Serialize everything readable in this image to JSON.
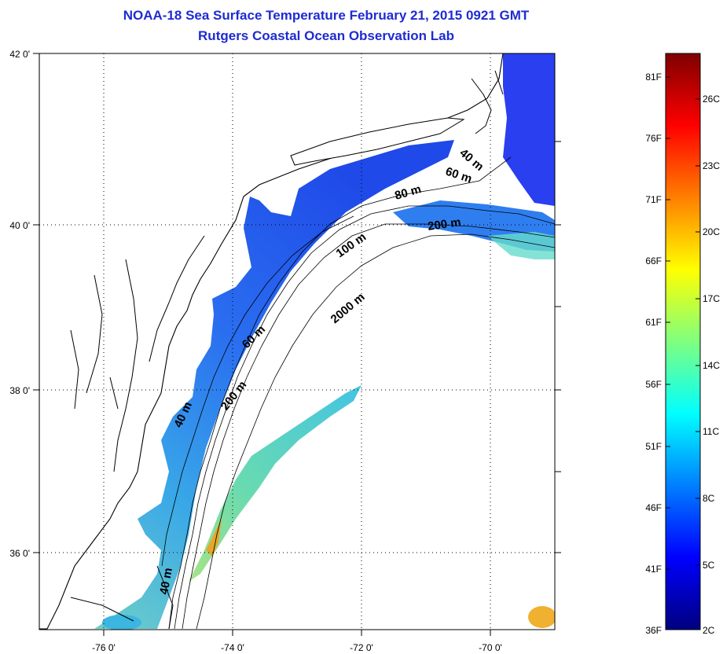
{
  "header": {
    "title": "NOAA-18 Sea Surface Temperature February 21, 2015 0921 GMT",
    "subtitle": "Rutgers Coastal Ocean Observation Lab"
  },
  "map": {
    "lat_labels": [
      "42 0'",
      "40 0'",
      "38 0'",
      "36 0'"
    ],
    "lon_labels": [
      "-76 0'",
      "-74 0'",
      "-72 0'",
      "-70 0'"
    ],
    "contour_labels": [
      "40 m",
      "60 m",
      "80 m",
      "200 m",
      "100 m",
      "2000 m",
      "60 m",
      "200 m",
      "40 m",
      "40 m"
    ]
  },
  "colorbar": {
    "fahrenheit_labels": [
      "81F",
      "76F",
      "71F",
      "66F",
      "61F",
      "56F",
      "51F",
      "46F",
      "41F",
      "36F"
    ],
    "celsius_labels": [
      "26C",
      "23C",
      "20C",
      "17C",
      "14C",
      "11C",
      "8C",
      "5C",
      "2C"
    ],
    "colors": [
      "#00007f",
      "#0000ff",
      "#007fff",
      "#00ffff",
      "#7fff7f",
      "#ffff00",
      "#ff7f00",
      "#ff0000",
      "#7f0000"
    ]
  }
}
